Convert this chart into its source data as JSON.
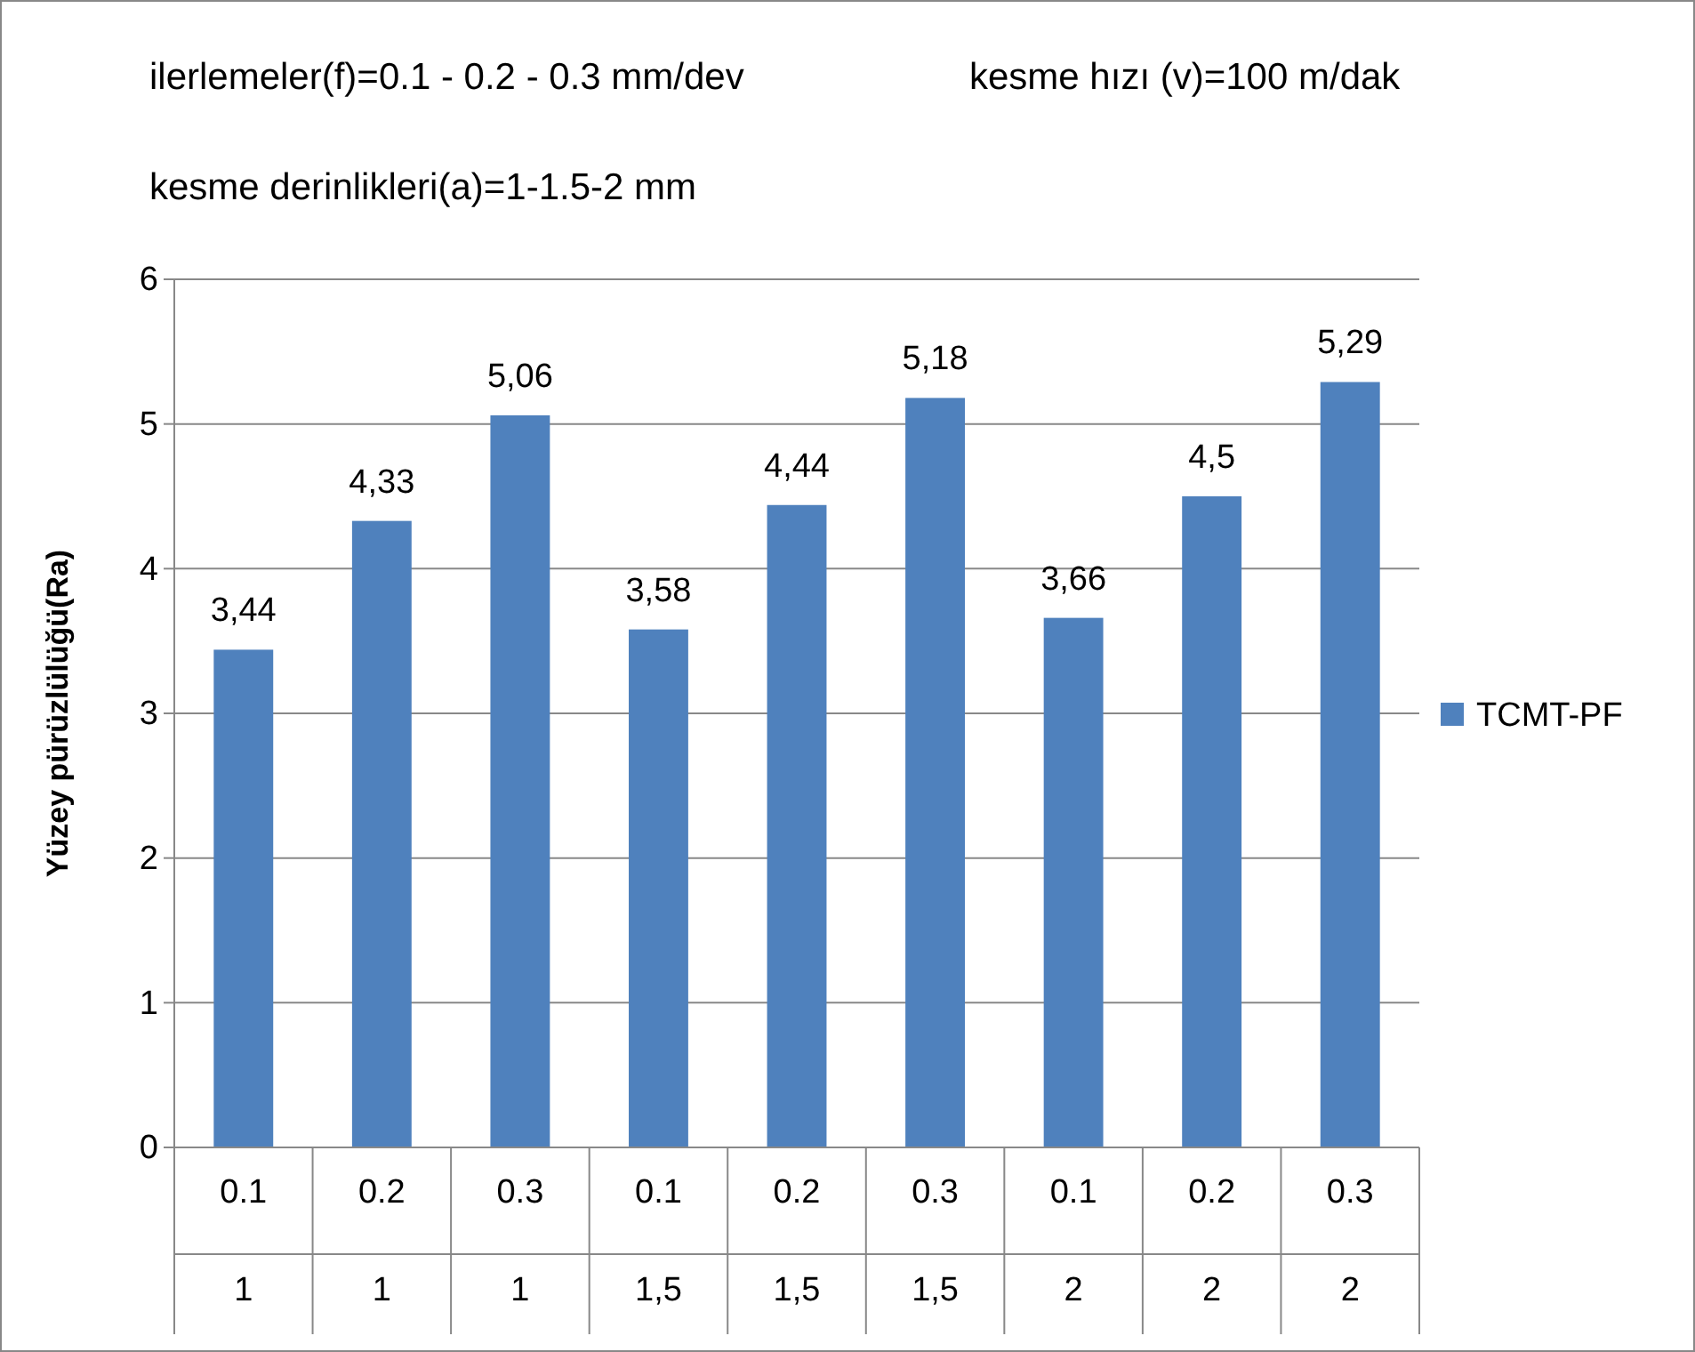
{
  "chart_data": {
    "type": "bar",
    "ylabel": "Yüzey pürüzlülüğü(Ra)",
    "annotations": [
      "ilerlemeler(f)=0.1 - 0.2 - 0.3 mm/dev",
      "kesme hızı (v)=100 m/dak",
      "kesme derinlikleri(a)=1-1.5-2 mm"
    ],
    "categories": [
      "0.1\n1",
      "0.2\n1",
      "0.3\n1",
      "0.1\n1,5",
      "0.2\n1,5",
      "0.3\n1,5",
      "0.1\n2",
      "0.2\n2",
      "0.3\n2"
    ],
    "series": [
      {
        "name": "TCMT-PF",
        "color": "#4f81bd",
        "values": [
          3.44,
          4.33,
          5.06,
          3.58,
          4.44,
          5.18,
          3.66,
          4.5,
          5.29
        ]
      }
    ],
    "value_labels": [
      "3,44",
      "4,33",
      "5,06",
      "3,58",
      "4,44",
      "5,18",
      "3,66",
      "4,5",
      "5,29"
    ],
    "ylim": [
      0,
      6
    ],
    "yticks": [
      0,
      1,
      2,
      3,
      4,
      5,
      6
    ],
    "grid": "y",
    "legend": "right"
  }
}
